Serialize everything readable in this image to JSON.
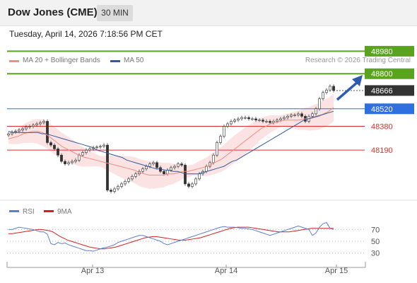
{
  "header": {
    "title": "Dow Jones (CME)",
    "interval": "30 MIN"
  },
  "timestamp": "Tuesday, April 14, 2026 7:18:56 PM CET",
  "legend": {
    "bollinger": {
      "label": "MA 20 + Bollinger Bands",
      "color": "#f28b82"
    },
    "ma50": {
      "label": "MA 50",
      "color": "#2f5b9a"
    }
  },
  "credit": "Research © 2026 Trading Central",
  "rsi_legend": {
    "rsi": {
      "label": "RSI",
      "color": "#5b7fd6"
    },
    "ma9": {
      "label": "9MA",
      "color": "#d62020"
    }
  },
  "chart_data": [
    {
      "type": "candlestick",
      "instrument": "Dow Jones (CME)",
      "interval": "30 MIN",
      "y_range": [
        47750,
        49050
      ],
      "x_tick_labels": [
        "Apr 13",
        "Apr 14",
        "Apr 15"
      ],
      "levels": [
        {
          "label": "48980",
          "value": 48980,
          "color": "#5aa31e",
          "kind": "resistance"
        },
        {
          "label": "48800",
          "value": 48800,
          "color": "#5aa31e",
          "kind": "resistance"
        },
        {
          "label": "48666",
          "value": 48666,
          "color": "#333333",
          "kind": "last"
        },
        {
          "label": "48520",
          "value": 48520,
          "color": "#2f6fe0",
          "kind": "pivot"
        },
        {
          "label": "48380",
          "value": 48380,
          "color": "#e03030",
          "kind": "support"
        },
        {
          "label": "48190",
          "value": 48190,
          "color": "#e03030",
          "kind": "support"
        }
      ],
      "close": [
        48320,
        48335,
        48340,
        48350,
        48360,
        48375,
        48380,
        48390,
        48400,
        48410,
        48420,
        48250,
        48230,
        48200,
        48150,
        48100,
        48080,
        48090,
        48100,
        48110,
        48150,
        48170,
        48190,
        48200,
        48210,
        48215,
        48220,
        48230,
        47870,
        47860,
        47880,
        47900,
        47920,
        47940,
        47960,
        47980,
        48000,
        48020,
        48040,
        48060,
        48080,
        48090,
        48050,
        48020,
        48000,
        48030,
        48050,
        48060,
        48080,
        48070,
        47920,
        47900,
        47920,
        47960,
        48000,
        48020,
        48060,
        48090,
        48150,
        48250,
        48300,
        48380,
        48400,
        48420,
        48430,
        48440,
        48450,
        48450,
        48440,
        48440,
        48430,
        48430,
        48420,
        48420,
        48410,
        48420,
        48430,
        48440,
        48450,
        48460,
        48470,
        48470,
        48480,
        48460,
        48420,
        48460,
        48480,
        48520,
        48600,
        48650,
        48670,
        48700,
        48666
      ],
      "ma50": [
        48340,
        48330,
        48330,
        48330,
        48330,
        48330,
        48330,
        48330,
        48320,
        48320,
        48310,
        48300,
        48290,
        48280,
        48270,
        48260,
        48250,
        48240,
        48230,
        48220,
        48210,
        48190,
        48180,
        48170,
        48160,
        48150,
        48140,
        48130,
        48110,
        48100,
        48090,
        48080,
        48070,
        48060,
        48050,
        48040,
        48040,
        48030,
        48030,
        48020,
        48020,
        48010,
        48000,
        48000,
        48000,
        48000,
        48010,
        48020,
        48030,
        48040,
        48050,
        48060,
        48080,
        48100,
        48110,
        48130,
        48150,
        48170,
        48190,
        48210,
        48230,
        48250,
        48270,
        48290,
        48310,
        48330,
        48350,
        48370,
        48390,
        48410,
        48430,
        48440,
        48450,
        48460,
        48470,
        48480,
        48490,
        48500
      ],
      "bollinger_mid": [
        48280,
        48290,
        48300,
        48320,
        48330,
        48340,
        48340,
        48330,
        48310,
        48280,
        48250,
        48220,
        48200,
        48180,
        48160,
        48140,
        48130,
        48120,
        48110,
        48100,
        48090,
        48080,
        48070,
        48060,
        48050,
        48040,
        48030,
        48010,
        48000,
        47990,
        47990,
        47990,
        47990,
        48000,
        48000,
        48010,
        48020,
        48020,
        48030,
        48040,
        48050,
        48060,
        48080,
        48100,
        48120,
        48150,
        48180,
        48210,
        48240,
        48270,
        48300,
        48330,
        48360,
        48380,
        48400,
        48410,
        48420,
        48430,
        48430,
        48430,
        48430,
        48440,
        48440,
        48450,
        48460,
        48480,
        48500,
        48530
      ],
      "rsi_axis_labels": [
        "70",
        "50",
        "30"
      ],
      "rsi": [
        70,
        70,
        72,
        74,
        73,
        72,
        71,
        70,
        68,
        66,
        66,
        62,
        46,
        44,
        48,
        46,
        47,
        44,
        42,
        40,
        38,
        36,
        34,
        34,
        33,
        35,
        37,
        39,
        40,
        42,
        44,
        48,
        50,
        52,
        54,
        56,
        58,
        60,
        60,
        58,
        56,
        54,
        52,
        50,
        46,
        44,
        46,
        48,
        50,
        52,
        54,
        56,
        58,
        60,
        62,
        64,
        66,
        68,
        70,
        72,
        74,
        75,
        74,
        74,
        74,
        73,
        72,
        72,
        71,
        70,
        68,
        66,
        64,
        62,
        60,
        62,
        64,
        66,
        68,
        70,
        72,
        74,
        76,
        74,
        72,
        70,
        60,
        64,
        74,
        80,
        82,
        72,
        70
      ],
      "rsi_ma9": [
        63,
        63,
        64,
        65,
        66,
        67,
        68,
        69,
        70,
        70,
        69,
        68,
        66,
        62,
        58,
        55,
        52,
        50,
        48,
        46,
        44,
        42,
        40,
        39,
        38,
        37,
        37,
        38,
        39,
        40,
        42,
        44,
        46,
        48,
        50,
        52,
        54,
        56,
        57,
        58,
        58,
        57,
        56,
        55,
        54,
        53,
        52,
        52,
        52,
        53,
        54,
        55,
        56,
        58,
        60,
        62,
        64,
        66,
        68,
        70,
        72,
        73,
        74,
        74,
        74,
        74,
        73,
        72,
        71,
        70,
        69,
        68,
        67,
        66,
        66,
        66,
        66,
        67,
        68,
        69,
        70,
        71,
        72,
        72,
        72,
        72,
        72,
        72,
        72
      ]
    }
  ]
}
